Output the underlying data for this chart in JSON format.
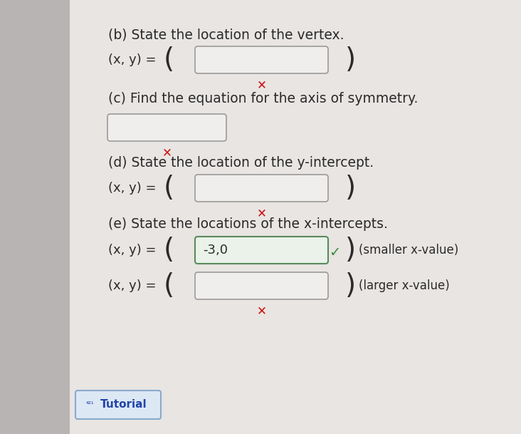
{
  "left_bar_color": "#b8b4b4",
  "bg_color": "#d4d0d0",
  "panel_color": "#e8e5e3",
  "text_color": "#2a2a2a",
  "box_facecolor": "#f0eeec",
  "box_edgecolor": "#9a9a9a",
  "box_filled_facecolor": "#eaf2ea",
  "box_filled_edgecolor": "#5a8a5a",
  "red_x_color": "#cc1111",
  "green_check_color": "#3a8a3a",
  "tutorial_bg": "#dde8f5",
  "tutorial_edge": "#8aaacc",
  "tutorial_text": "#2244aa",
  "section_b_label": "(b) State the location of the vertex.",
  "section_b_prefix": "(x, y) =",
  "section_c_label": "(c) Find the equation for the axis of symmetry.",
  "section_d_label": "(d) State the location of the y-intercept.",
  "section_d_prefix": "(x, y) =",
  "section_e_label": "(e) State the locations of the x-intercepts.",
  "section_e_row1_prefix": "(x, y) =",
  "section_e_row1_content": "-3,0",
  "section_e_row1_side": "(smaller x-value)",
  "section_e_row2_prefix": "(x, y) =",
  "section_e_row2_side": "(larger x-value)",
  "tutorial_label": "Tutorial",
  "left_bar_width": 0.135
}
